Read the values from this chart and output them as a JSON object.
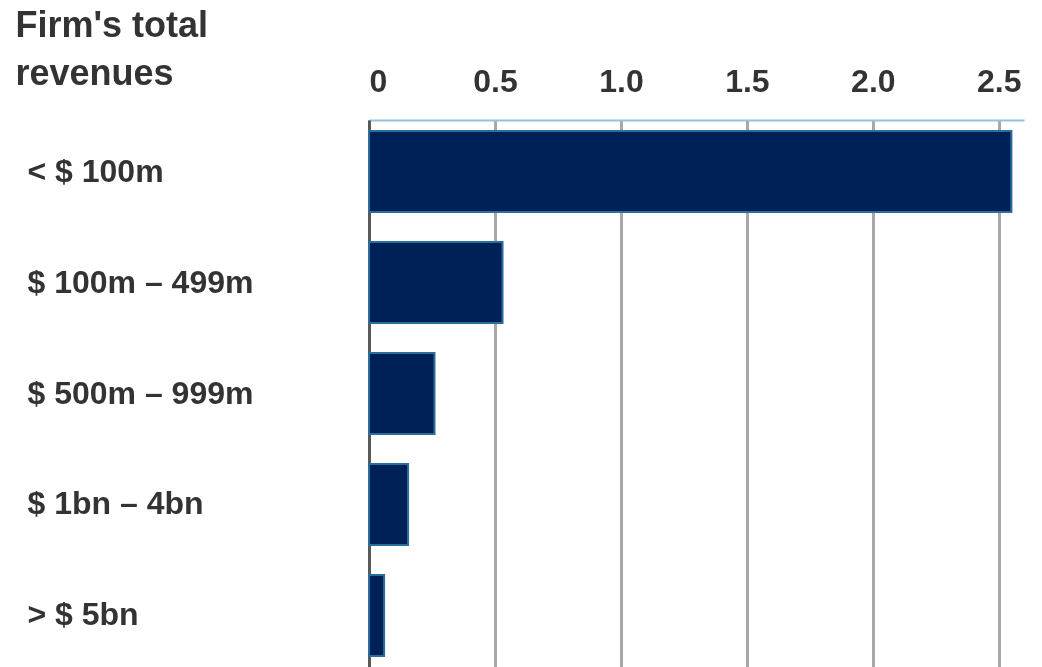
{
  "chart_data": {
    "type": "bar",
    "orientation": "horizontal",
    "ylabel": "Firm's total revenues",
    "categories": [
      "< $ 100m",
      "$ 100m – 499m",
      "$ 500m – 999m",
      "$ 1bn – 4bn",
      "> $ 5bn"
    ],
    "values": [
      2.55,
      0.53,
      0.26,
      0.155,
      0.06
    ],
    "color": "#002157",
    "xlim": [
      0,
      2.6
    ],
    "xticks": [
      {
        "value": 0,
        "label": "0"
      },
      0.5,
      {
        "value": 1,
        "label": "1.0"
      },
      1.5,
      {
        "value": 2,
        "label": "2.0"
      },
      2.5
    ],
    "grid": "x"
  }
}
